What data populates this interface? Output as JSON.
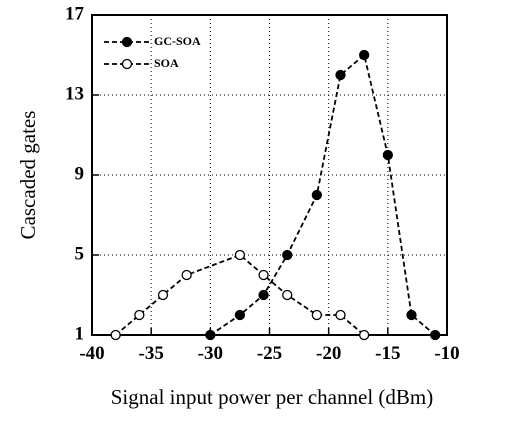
{
  "chart_data": {
    "type": "line",
    "x_label": "Signal input power per channel  (dBm)",
    "y_label": "Cascaded gates",
    "xlim": [
      -40,
      -10
    ],
    "xticks": [
      -40,
      -35,
      -30,
      -25,
      -20,
      -15,
      -10
    ],
    "ylim": [
      1,
      17
    ],
    "yticks": [
      1,
      5,
      9,
      13,
      17
    ],
    "grid": true,
    "legend": "upper left",
    "series": [
      {
        "name": "GC-SOA",
        "color": "#000000",
        "marker": "filled",
        "x": [
          -30,
          -27.5,
          -25.5,
          -23.5,
          -21,
          -19,
          -17,
          -15,
          -13,
          -11
        ],
        "values": [
          1,
          2,
          3,
          5,
          8,
          14,
          15,
          10,
          2,
          1
        ]
      },
      {
        "name": "SOA",
        "color": "#000000",
        "marker": "open",
        "x": [
          -38,
          -36,
          -34,
          -32,
          -27.5,
          -25.5,
          -23.5,
          -21,
          -19,
          -17
        ],
        "values": [
          1,
          2,
          3,
          4,
          5,
          4,
          3,
          2,
          2,
          1
        ]
      }
    ]
  }
}
